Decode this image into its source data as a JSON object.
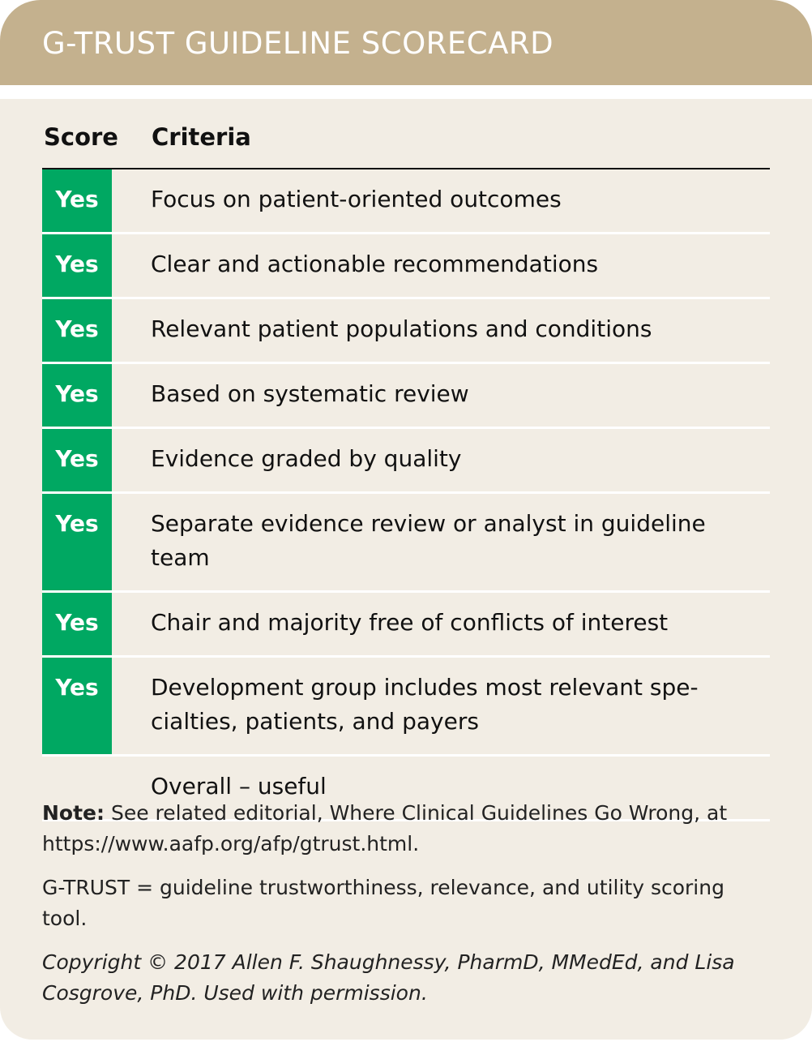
{
  "title": "G-TRUST GUIDELINE SCORECARD",
  "columns": {
    "score": "Score",
    "criteria": "Criteria"
  },
  "rows": [
    {
      "score": "Yes",
      "criteria": "Focus on patient-oriented outcomes"
    },
    {
      "score": "Yes",
      "criteria": "Clear and actionable recommendations"
    },
    {
      "score": "Yes",
      "criteria": "Relevant patient populations and conditions"
    },
    {
      "score": "Yes",
      "criteria": "Based on systematic review"
    },
    {
      "score": "Yes",
      "criteria": "Evidence graded by quality"
    },
    {
      "score": "Yes",
      "criteria": "Separate evidence review or analyst in guideline team"
    },
    {
      "score": "Yes",
      "criteria": "Chair and majority free of conflicts of interest"
    },
    {
      "score": "Yes",
      "criteria": "Development group includes most relevant spe-cialties, patients, and payers"
    },
    {
      "score": "",
      "criteria": "Overall – useful"
    }
  ],
  "notes": {
    "note_label": "Note:",
    "note_text": " See related editorial, Where Clinical Guidelines Go Wrong, at https://www.aafp.org/afp/gtrust.html.",
    "abbreviation": "G-TRUST = guideline trustworthiness, relevance, and utility scoring tool.",
    "copyright": "Copyright © 2017 Allen F. Shaughnessy, PharmD, MMedEd, and Lisa Cosgrove, PhD. Used with permission."
  },
  "colors": {
    "header": "#c4b18e",
    "background": "#f2ede4",
    "yes": "#00a862"
  }
}
